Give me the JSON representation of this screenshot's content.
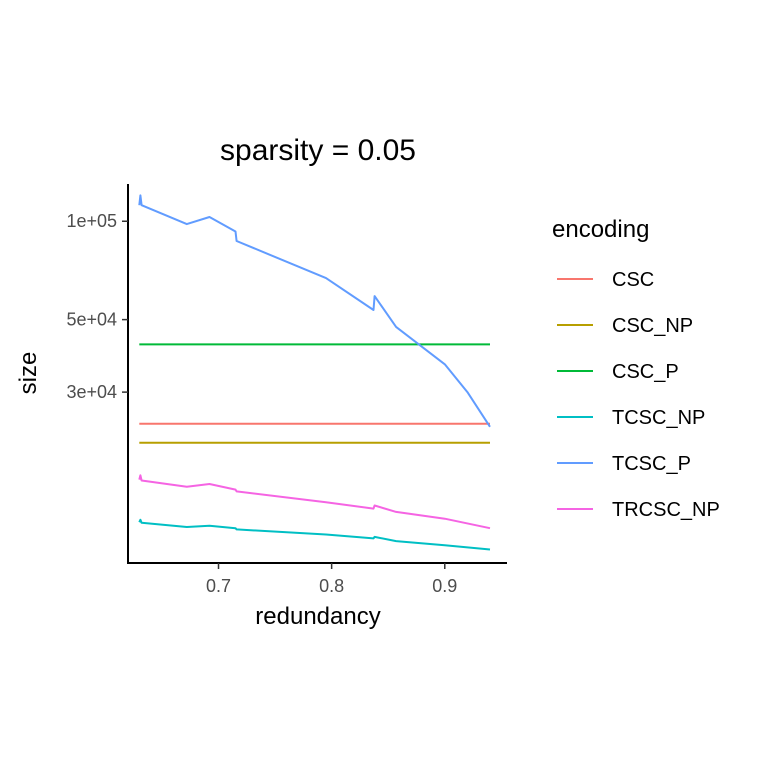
{
  "chart_data": {
    "type": "line",
    "title": "sparsity = 0.05",
    "xlabel": "redundancy",
    "ylabel": "size",
    "y_scale": "log",
    "xlim": [
      0.62,
      0.955
    ],
    "ylim": [
      9000,
      130000
    ],
    "x_ticks": [
      0.7,
      0.8,
      0.9
    ],
    "x_tick_labels": [
      "0.7",
      "0.8",
      "0.9"
    ],
    "y_ticks": [
      30000,
      50000,
      100000
    ],
    "y_tick_labels": [
      "3e+04",
      "5e+04",
      "1e+05"
    ],
    "grid": false,
    "legend": {
      "title": "encoding",
      "position": "right"
    },
    "series": [
      {
        "name": "CSC",
        "color": "#F8766D",
        "x": [
          0.63,
          0.94
        ],
        "y": [
          24000,
          24000
        ]
      },
      {
        "name": "CSC_NP",
        "color": "#B79F00",
        "x": [
          0.63,
          0.94
        ],
        "y": [
          21000,
          21000
        ]
      },
      {
        "name": "CSC_P",
        "color": "#00BA38",
        "x": [
          0.63,
          0.94
        ],
        "y": [
          42000,
          42000
        ]
      },
      {
        "name": "TCSC_NP",
        "color": "#00BFC4",
        "x": [
          0.63,
          0.631,
          0.632,
          0.672,
          0.692,
          0.715,
          0.716,
          0.795,
          0.837,
          0.838,
          0.857,
          0.9,
          0.94
        ],
        "y": [
          12000,
          12200,
          11950,
          11600,
          11700,
          11500,
          11400,
          11000,
          10700,
          10820,
          10500,
          10200,
          9900
        ]
      },
      {
        "name": "TCSC_P",
        "color": "#619CFF",
        "x": [
          0.63,
          0.631,
          0.632,
          0.672,
          0.692,
          0.715,
          0.716,
          0.795,
          0.837,
          0.838,
          0.857,
          0.9,
          0.92,
          0.94
        ],
        "y": [
          112000,
          120000,
          112000,
          98000,
          103000,
          93000,
          87000,
          67000,
          53500,
          59000,
          47500,
          36500,
          30000,
          23500
        ]
      },
      {
        "name": "TRCSC_NP",
        "color": "#F564E3",
        "x": [
          0.63,
          0.631,
          0.632,
          0.672,
          0.692,
          0.715,
          0.716,
          0.795,
          0.837,
          0.838,
          0.857,
          0.9,
          0.94
        ],
        "y": [
          16200,
          16700,
          16100,
          15400,
          15700,
          15100,
          14900,
          13800,
          13200,
          13500,
          12900,
          12300,
          11500
        ]
      }
    ]
  }
}
